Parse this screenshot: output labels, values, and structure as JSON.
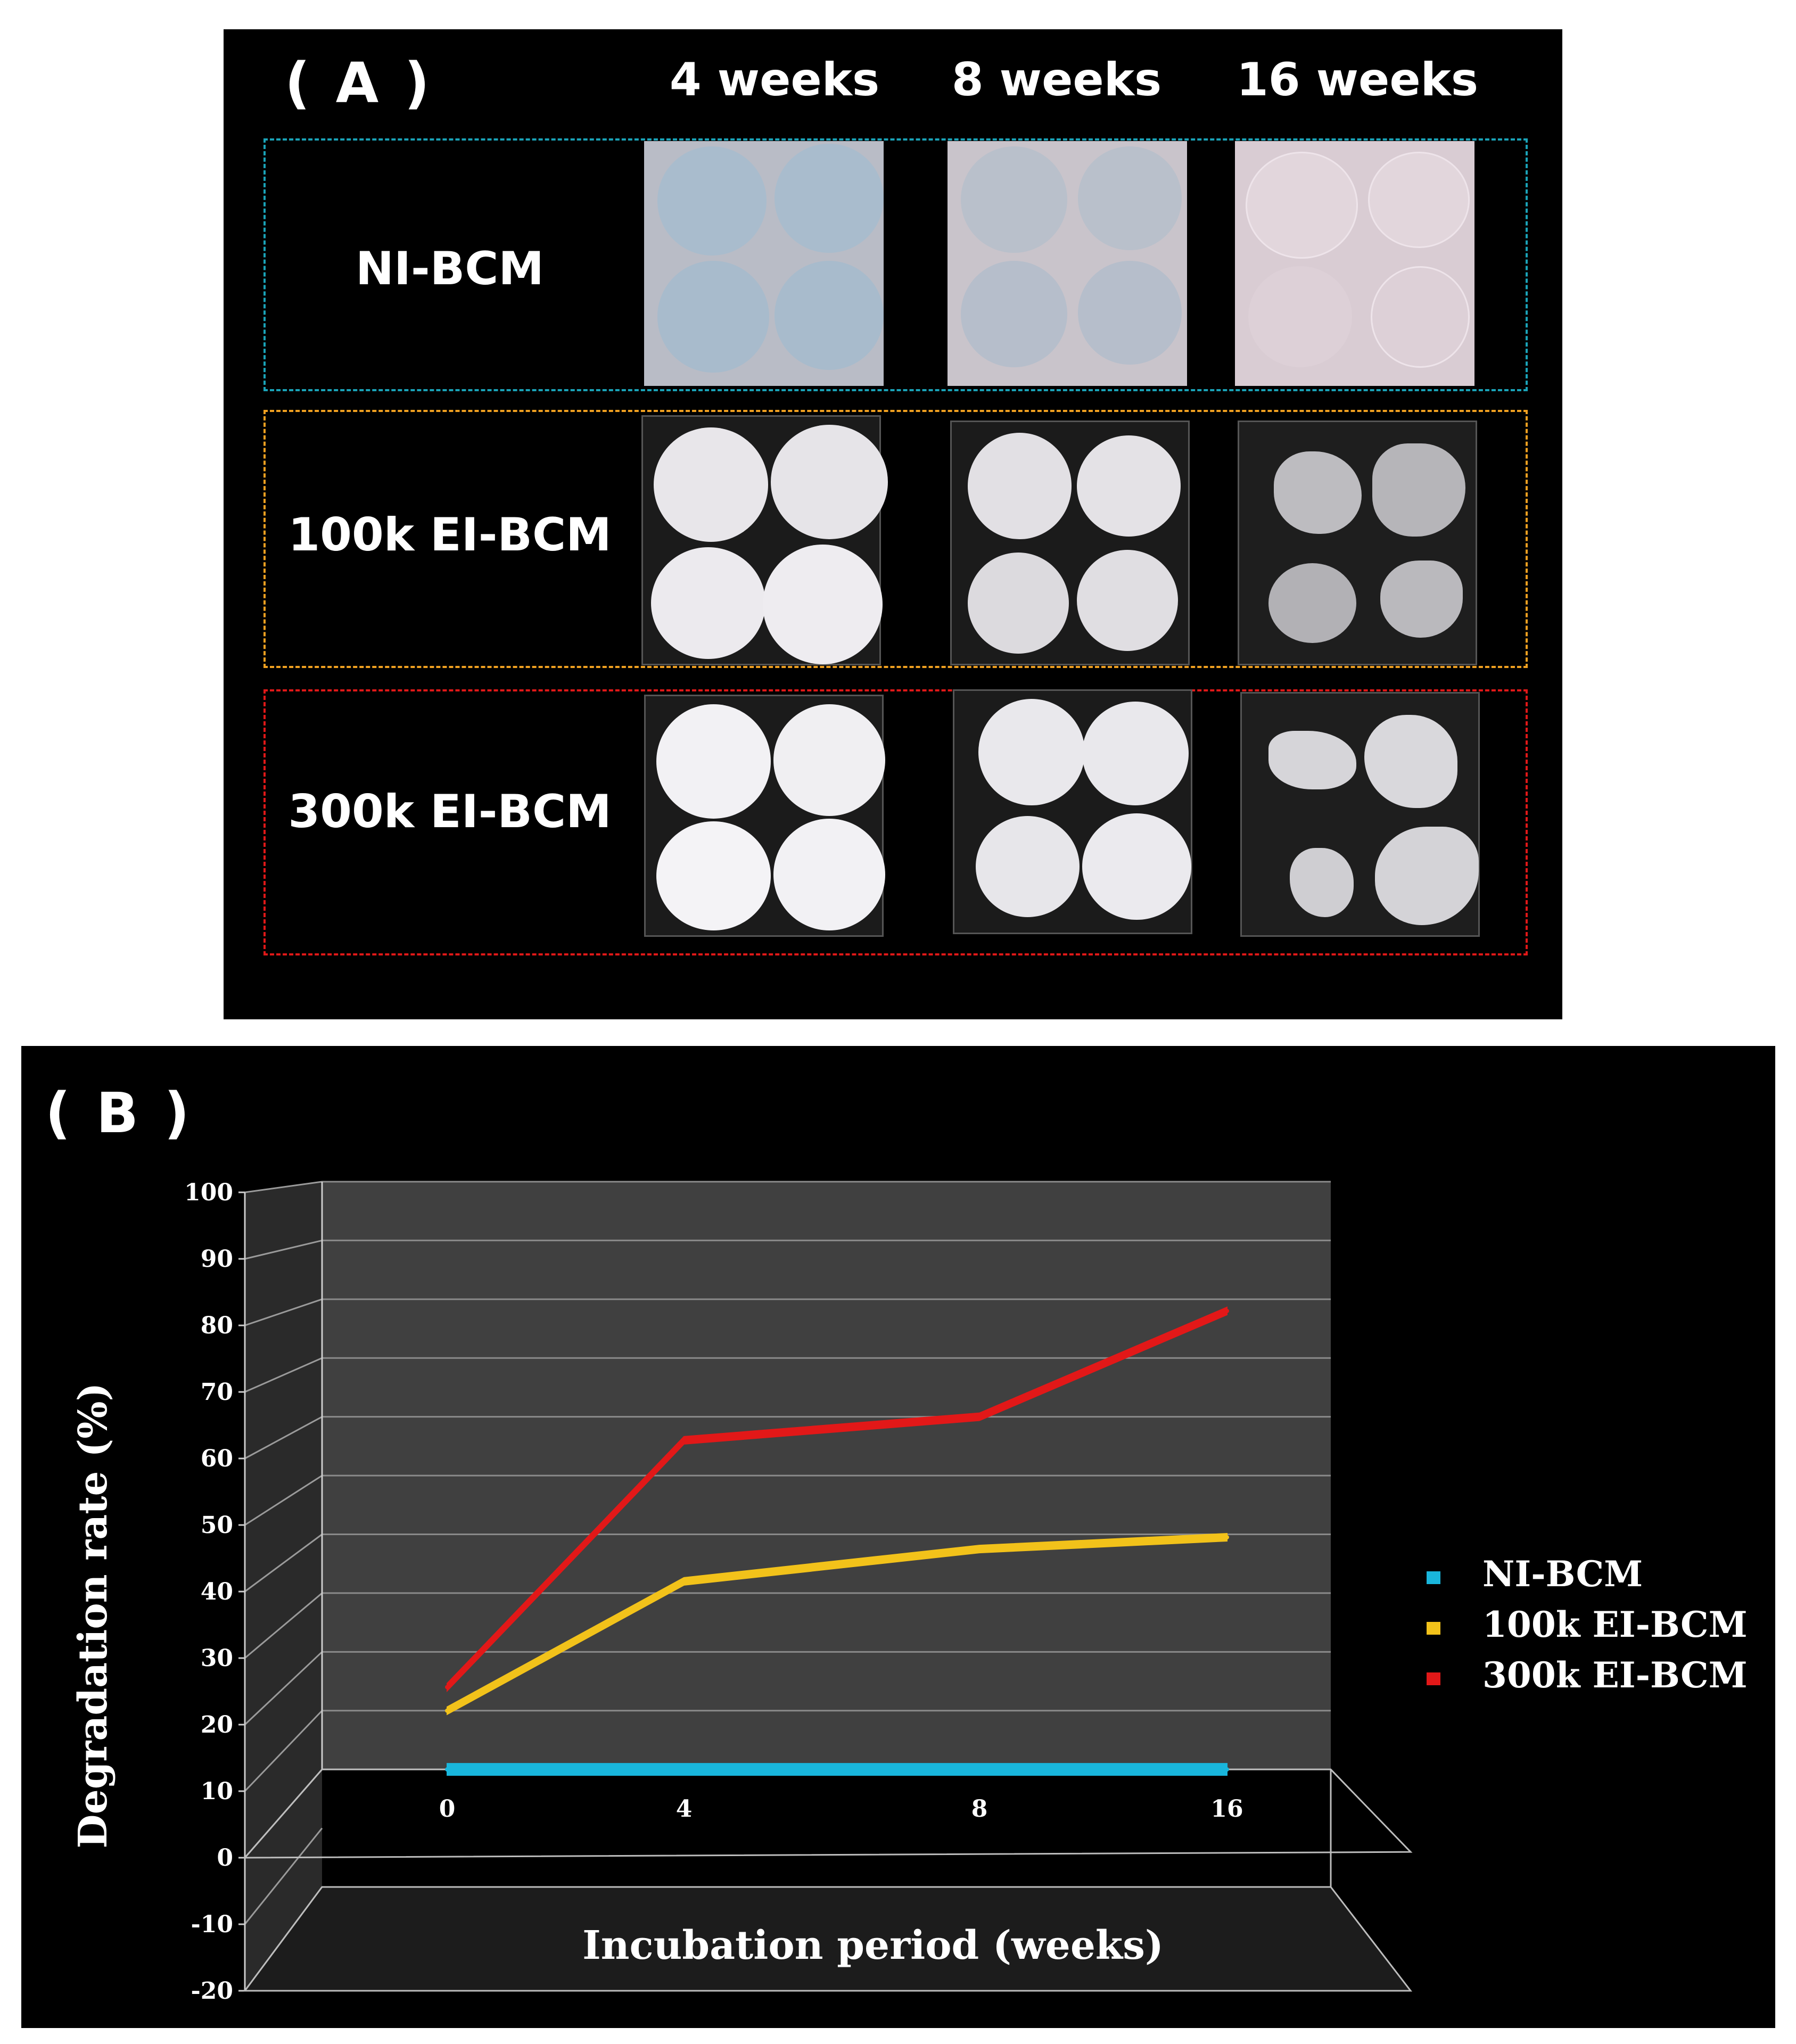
{
  "panel_a": {
    "label": "( A )",
    "columns": [
      "4 weeks",
      "8 weeks",
      "16 weeks"
    ],
    "rows": [
      {
        "label": "NI-BCM",
        "border_color": "#1aa3b8",
        "material": "translucent"
      },
      {
        "label": "100k EI-BCM",
        "border_color": "#f0a020",
        "material": "white"
      },
      {
        "label": "300k EI-BCM",
        "border_color": "#e01818",
        "material": "white"
      }
    ]
  },
  "panel_b": {
    "label": "( B )"
  },
  "chart_data": {
    "type": "line",
    "categories": [
      "0",
      "4",
      "8",
      "16"
    ],
    "xlabel": "Incubation period (weeks)",
    "ylabel": "Degradation rate (%)",
    "ylim": [
      -20,
      100
    ],
    "yticks": [
      "100",
      "90",
      "80",
      "70",
      "60",
      "50",
      "40",
      "30",
      "20",
      "10",
      "0",
      "-10",
      "-20"
    ],
    "grid": true,
    "legend_position": "right",
    "series": [
      {
        "name": "NI-BCM",
        "values": [
          0,
          0,
          0,
          0
        ],
        "color": "#19b6dc"
      },
      {
        "name": "100k EI-BCM",
        "values": [
          10,
          32,
          37.5,
          39.5
        ],
        "color": "#f2c21a"
      },
      {
        "name": "300k EI-BCM",
        "values": [
          14,
          56,
          60,
          78
        ],
        "color": "#e21818"
      }
    ]
  }
}
